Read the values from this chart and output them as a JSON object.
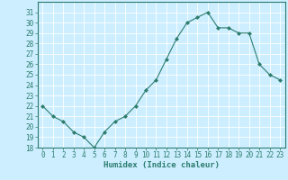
{
  "x": [
    0,
    1,
    2,
    3,
    4,
    5,
    6,
    7,
    8,
    9,
    10,
    11,
    12,
    13,
    14,
    15,
    16,
    17,
    18,
    19,
    20,
    21,
    22,
    23
  ],
  "y": [
    22,
    21,
    20.5,
    19.5,
    19,
    18,
    19.5,
    20.5,
    21,
    22,
    23.5,
    24.5,
    26.5,
    28.5,
    30,
    30.5,
    31,
    29.5,
    29.5,
    29,
    29,
    26,
    25,
    24.5
  ],
  "xlabel": "Humidex (Indice chaleur)",
  "ylim": [
    18,
    32
  ],
  "xlim": [
    -0.5,
    23.5
  ],
  "yticks": [
    18,
    19,
    20,
    21,
    22,
    23,
    24,
    25,
    26,
    27,
    28,
    29,
    30,
    31
  ],
  "xticks": [
    0,
    1,
    2,
    3,
    4,
    5,
    6,
    7,
    8,
    9,
    10,
    11,
    12,
    13,
    14,
    15,
    16,
    17,
    18,
    19,
    20,
    21,
    22,
    23
  ],
  "line_color": "#2d7d6e",
  "marker": "D",
  "marker_size": 2.0,
  "bg_color": "#cceeff",
  "grid_color": "#ffffff",
  "label_color": "#2d7d6e",
  "font_size": 5.5,
  "xlabel_fontsize": 6.5
}
